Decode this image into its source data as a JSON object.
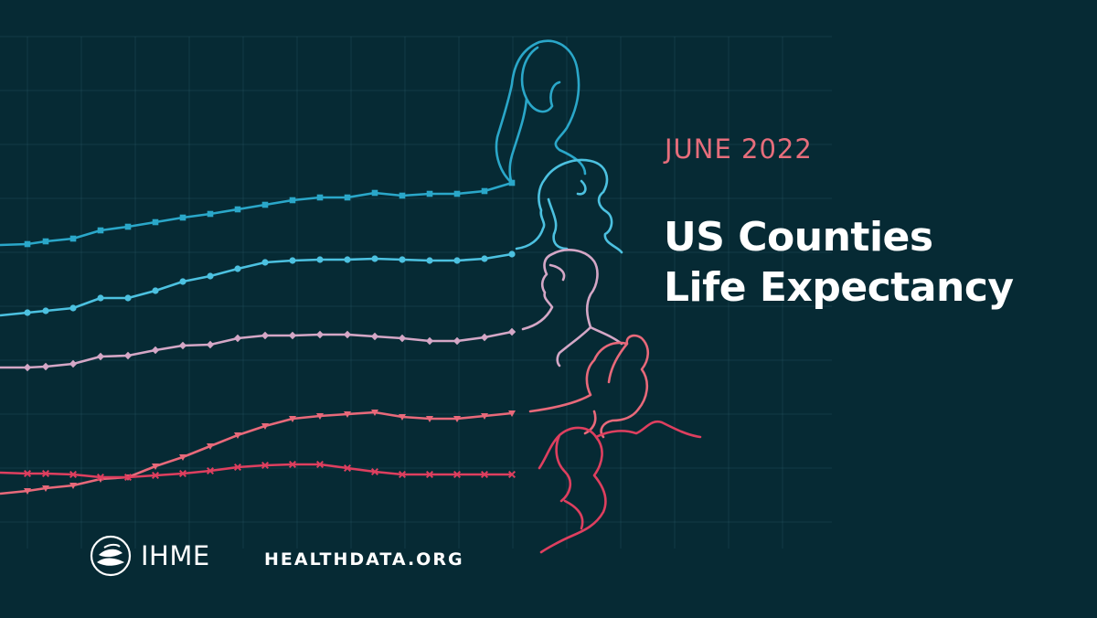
{
  "header": {
    "date": "JUNE 2022",
    "title_line1": "US Counties",
    "title_line2": "Life Expectancy"
  },
  "footer": {
    "logo_text": "IHME",
    "website": "HEALTHDATA.ORG"
  },
  "colors": {
    "background": "#062a34",
    "grid": "#1f4a55",
    "date_accent": "#e66d7b",
    "title": "#ffffff",
    "series_1": "#2aa7c9",
    "series_2": "#4cc1e0",
    "series_3": "#d4a7c6",
    "series_4": "#e8697a",
    "series_5": "#de3f5f"
  },
  "icons": [
    "ihme-leaf-logo-icon",
    "person-line-drawing-icon"
  ]
}
